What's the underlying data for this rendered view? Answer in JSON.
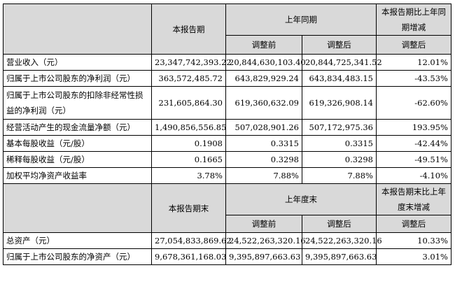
{
  "table": {
    "header1": {
      "current": "本报告期",
      "prior_year": "上年同期",
      "change": "本报告期比上年同期增减",
      "before": "调整前",
      "after": "调整后",
      "change_sub": "调整后"
    },
    "rows1": [
      {
        "label": "营业收入（元）",
        "current": "23,347,742,393.22",
        "before": "20,844,630,103.40",
        "after": "20,844,725,341.52",
        "change": "12.01%"
      },
      {
        "label": "归属于上市公司股东的净利润（元）",
        "current": "363,572,485.72",
        "before": "643,829,929.24",
        "after": "643,834,483.15",
        "change": "-43.53%"
      },
      {
        "label": "归属于上市公司股东的扣除非经常性损益的净利润（元）",
        "current": "231,605,864.30",
        "before": "619,360,632.09",
        "after": "619,326,908.14",
        "change": "-62.60%"
      },
      {
        "label": "经营活动产生的现金流量净额（元）",
        "current": "1,490,856,556.85",
        "before": "507,028,901.26",
        "after": "507,172,975.36",
        "change": "193.95%"
      },
      {
        "label": "基本每股收益（元/股）",
        "current": "0.1908",
        "before": "0.3315",
        "after": "0.3315",
        "change": "-42.44%"
      },
      {
        "label": "稀释每股收益（元/股）",
        "current": "0.1665",
        "before": "0.3298",
        "after": "0.3298",
        "change": "-49.51%"
      },
      {
        "label": "加权平均净资产收益率",
        "current": "3.78%",
        "before": "7.88%",
        "after": "7.88%",
        "change": "-4.10%"
      }
    ],
    "header2": {
      "current": "本报告期末",
      "prior_year": "上年度末",
      "change": "本报告期末比上年度末增减",
      "before": "调整前",
      "after": "调整后",
      "change_sub": "调整后"
    },
    "rows2": [
      {
        "label": "总资产（元）",
        "current": "27,054,833,869.62",
        "before": "24,522,263,320.16",
        "after": "24,522,263,320.16",
        "change": "10.33%"
      },
      {
        "label": "归属于上市公司股东的净资产（元）",
        "current": "9,678,361,168.03",
        "before": "9,395,897,663.63",
        "after": "9,395,897,663.63",
        "change": "3.01%"
      }
    ]
  }
}
